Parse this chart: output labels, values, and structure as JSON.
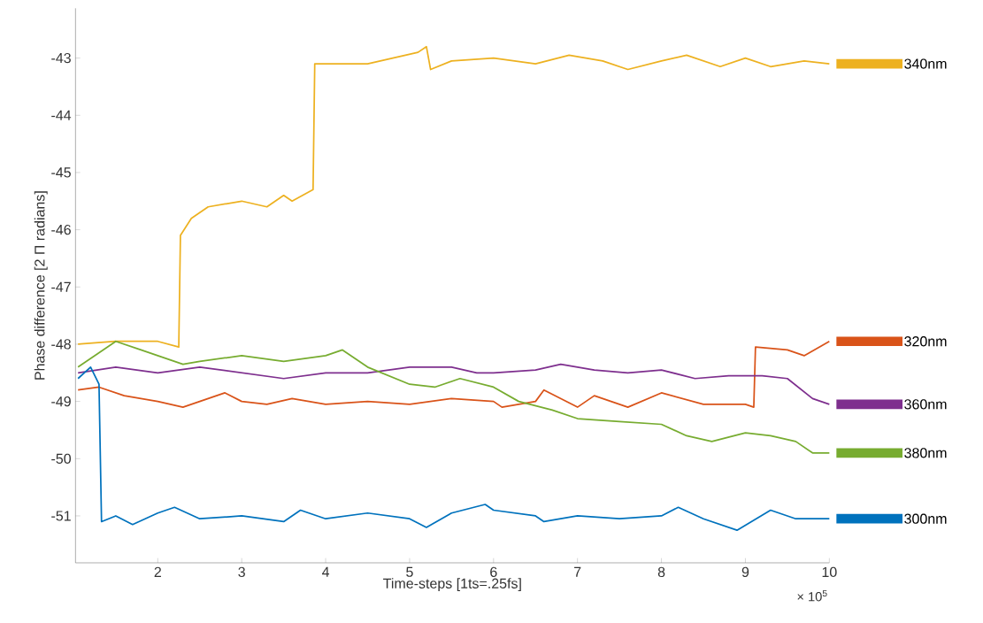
{
  "chart_data": {
    "type": "line",
    "xlabel": "Time-steps [1ts=.25fs]",
    "ylabel": "Phase difference [2 Π radians]",
    "xlim": [
      1.02,
      10
    ],
    "ylim": [
      -51.82,
      -42.13
    ],
    "xticks": [
      2,
      3,
      4,
      5,
      6,
      7,
      8,
      9,
      10
    ],
    "yticks": [
      -51,
      -50,
      -49,
      -48,
      -47,
      -46,
      -45,
      -44,
      -43
    ],
    "legend": "right",
    "line_style": "solid",
    "annotations": [
      "× 10$^{5}$"
    ],
    "series": [
      {
        "name": "340nm",
        "color": "#edb120",
        "x": [
          1.05,
          1.5,
          2.0,
          2.25,
          2.27,
          2.4,
          2.6,
          3.0,
          3.3,
          3.5,
          3.6,
          3.85,
          3.87,
          4.0,
          4.5,
          4.8,
          5.1,
          5.2,
          5.25,
          5.5,
          6.0,
          6.5,
          6.9,
          7.3,
          7.6,
          8.0,
          8.3,
          8.7,
          9.0,
          9.3,
          9.7,
          10.0
        ],
        "values": [
          -48.0,
          -47.95,
          -47.95,
          -48.05,
          -46.1,
          -45.8,
          -45.6,
          -45.5,
          -45.6,
          -45.4,
          -45.5,
          -45.3,
          -43.1,
          -43.1,
          -43.1,
          -43.0,
          -42.9,
          -42.8,
          -43.2,
          -43.05,
          -43.0,
          -43.1,
          -42.95,
          -43.05,
          -43.2,
          -43.05,
          -42.95,
          -43.15,
          -43.0,
          -43.15,
          -43.05,
          -43.1
        ]
      },
      {
        "name": "320nm",
        "color": "#d95319",
        "x": [
          1.05,
          1.3,
          1.6,
          2.0,
          2.3,
          2.8,
          3.0,
          3.3,
          3.6,
          4.0,
          4.5,
          5.0,
          5.5,
          6.0,
          6.1,
          6.5,
          6.6,
          7.0,
          7.2,
          7.6,
          8.0,
          8.5,
          9.0,
          9.1,
          9.12,
          9.5,
          9.7,
          10.0
        ],
        "values": [
          -48.8,
          -48.75,
          -48.9,
          -49.0,
          -49.1,
          -48.85,
          -49.0,
          -49.05,
          -48.95,
          -49.05,
          -49.0,
          -49.05,
          -48.95,
          -49.0,
          -49.1,
          -49.0,
          -48.8,
          -49.1,
          -48.9,
          -49.1,
          -48.85,
          -49.05,
          -49.05,
          -49.1,
          -48.05,
          -48.1,
          -48.2,
          -47.95
        ]
      },
      {
        "name": "360nm",
        "color": "#7e2f8e",
        "x": [
          1.05,
          1.5,
          2.0,
          2.5,
          3.0,
          3.5,
          4.0,
          4.5,
          5.0,
          5.5,
          5.8,
          6.0,
          6.5,
          6.8,
          7.2,
          7.6,
          8.0,
          8.4,
          8.8,
          9.2,
          9.5,
          9.8,
          10.0
        ],
        "values": [
          -48.5,
          -48.4,
          -48.5,
          -48.4,
          -48.5,
          -48.6,
          -48.5,
          -48.5,
          -48.4,
          -48.4,
          -48.5,
          -48.5,
          -48.45,
          -48.35,
          -48.45,
          -48.5,
          -48.45,
          -48.6,
          -48.55,
          -48.55,
          -48.6,
          -48.95,
          -49.05
        ]
      },
      {
        "name": "380nm",
        "color": "#77ac30",
        "x": [
          1.05,
          1.5,
          1.8,
          2.3,
          2.5,
          3.0,
          3.5,
          4.0,
          4.2,
          4.5,
          5.0,
          5.3,
          5.6,
          6.0,
          6.3,
          6.7,
          7.0,
          7.5,
          8.0,
          8.3,
          8.6,
          9.0,
          9.3,
          9.6,
          9.8,
          10.0
        ],
        "values": [
          -48.4,
          -47.95,
          -48.1,
          -48.35,
          -48.3,
          -48.2,
          -48.3,
          -48.2,
          -48.1,
          -48.4,
          -48.7,
          -48.75,
          -48.6,
          -48.75,
          -49.0,
          -49.15,
          -49.3,
          -49.35,
          -49.4,
          -49.6,
          -49.7,
          -49.55,
          -49.6,
          -49.7,
          -49.9,
          -49.9
        ]
      },
      {
        "name": "300nm",
        "color": "#0072bd",
        "x": [
          1.05,
          1.2,
          1.3,
          1.33,
          1.5,
          1.7,
          2.0,
          2.2,
          2.5,
          3.0,
          3.5,
          3.7,
          4.0,
          4.5,
          5.0,
          5.2,
          5.5,
          5.9,
          6.0,
          6.5,
          6.6,
          7.0,
          7.5,
          8.0,
          8.2,
          8.5,
          8.9,
          9.3,
          9.6,
          10.0
        ],
        "values": [
          -48.6,
          -48.4,
          -48.7,
          -51.1,
          -51.0,
          -51.15,
          -50.95,
          -50.85,
          -51.05,
          -51.0,
          -51.1,
          -50.9,
          -51.05,
          -50.95,
          -51.05,
          -51.2,
          -50.95,
          -50.8,
          -50.9,
          -51.0,
          -51.1,
          -51.0,
          -51.05,
          -51.0,
          -50.85,
          -51.05,
          -51.25,
          -50.9,
          -51.05,
          -51.05
        ]
      }
    ]
  }
}
